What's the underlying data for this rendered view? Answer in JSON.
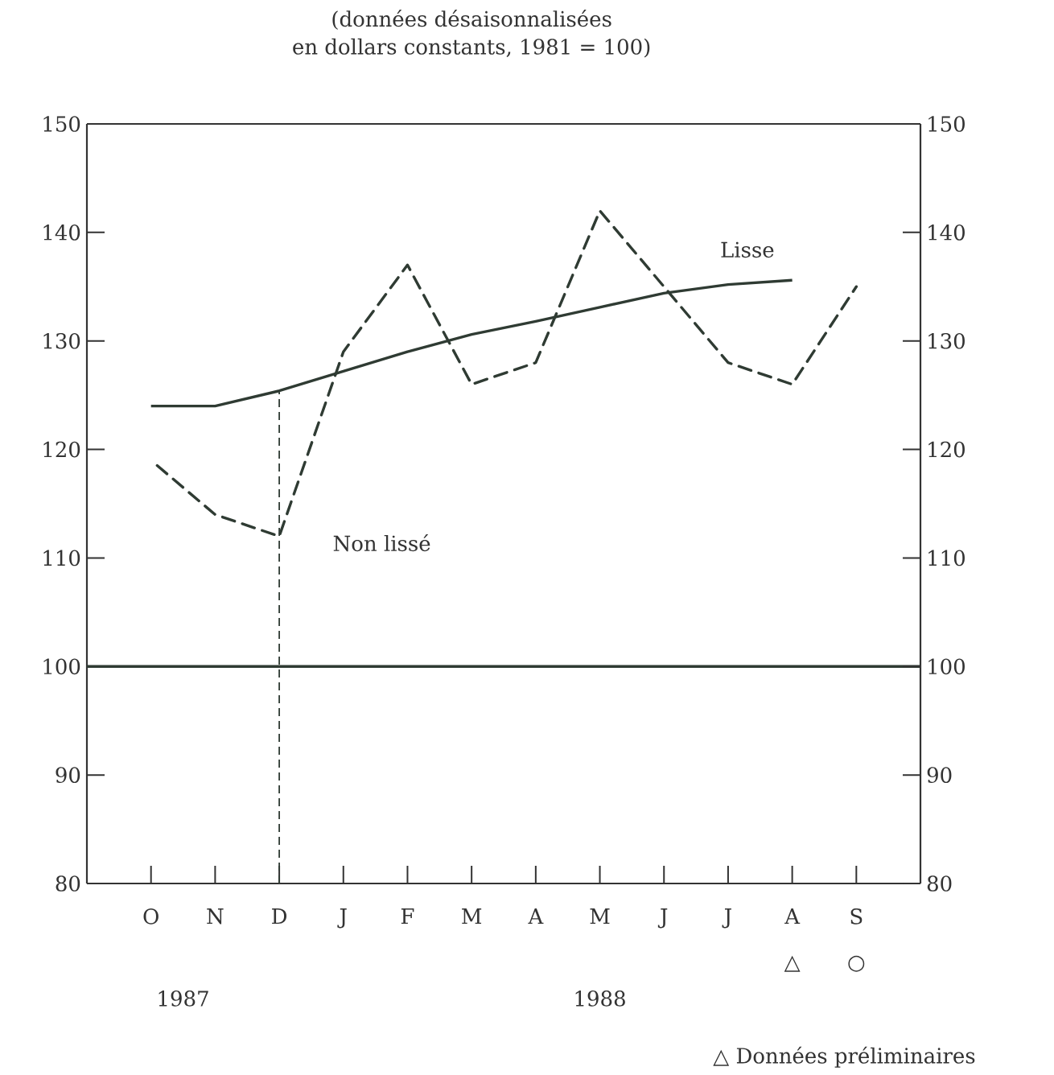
{
  "chart_data": {
    "type": "line",
    "title": "(données désaisonnalisées",
    "subtitle": "en dollars constants, 1981 = 100)",
    "categories": [
      "O",
      "N",
      "D",
      "J",
      "F",
      "M",
      "A",
      "M",
      "J",
      "J",
      "A",
      "S"
    ],
    "series": [
      {
        "name": "Lisse",
        "color": "#2f3b33",
        "line_style": "solid",
        "values": [
          124,
          124,
          125.4,
          127.2,
          129,
          130.6,
          131.8,
          133.1,
          134.4,
          135.2,
          135.6,
          null
        ]
      },
      {
        "name": "Non lissé",
        "color": "#2f3b33",
        "line_style": "dashed",
        "values": [
          119,
          114,
          112,
          129,
          137,
          126,
          128,
          142,
          135,
          128,
          126,
          135
        ]
      }
    ],
    "ylim": [
      80,
      150
    ],
    "yticks": [
      80,
      90,
      100,
      110,
      120,
      130,
      140,
      150
    ],
    "y2lim": [
      80,
      150
    ],
    "y2ticks": [
      80,
      90,
      100,
      110,
      120,
      130,
      140,
      150
    ],
    "ref_lines": [
      {
        "axis": "y",
        "value": 100,
        "line_style": "solid",
        "color": "#2f3b33"
      },
      {
        "axis": "x",
        "value": "D",
        "line_style": "dashed",
        "color": "#2f3b33"
      }
    ],
    "annotations": [
      "1987",
      "1988",
      "△",
      "○",
      "△ Données préliminaires"
    ],
    "legend": false,
    "grid": false
  }
}
